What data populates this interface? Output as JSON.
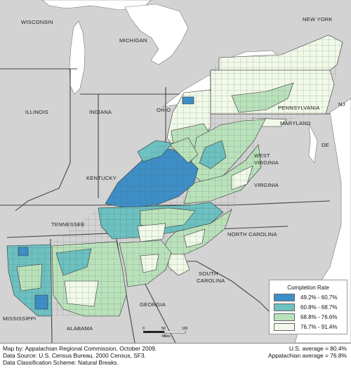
{
  "colors": {
    "bin1": "#3d8fc7",
    "bin2": "#6cc1c1",
    "bin3": "#b9e2bb",
    "bin4": "#f1f9e8",
    "land": "#d3d3d3",
    "water": "#ffffff",
    "outline": "#222222"
  },
  "states": {
    "wisconsin": "WISCONSIN",
    "michigan": "MICHIGAN",
    "new_york": "NEW YORK",
    "illinois": "ILLINOIS",
    "indiana": "INDIANA",
    "ohio": "OHIO",
    "pennsylvania": "PENNSYLVANIA",
    "nj": "NJ",
    "maryland": "MARYLAND",
    "de": "DE",
    "west_virginia_1": "WEST",
    "west_virginia_2": "VIRGINIA",
    "kentucky": "KENTUCKY",
    "virginia": "VIRGINIA",
    "tennessee": "TENNESSEE",
    "north_carolina": "NORTH CAROLINA",
    "south_carolina_1": "SOUTH",
    "south_carolina_2": "CAROLINA",
    "georgia": "GEORGIA",
    "mississippi": "MISSISSIPPI",
    "alabama": "ALABAMA"
  },
  "legend": {
    "title": "Completion Rate",
    "items": [
      {
        "label": "49.2% - 60.7%",
        "color": "#3d8fc7"
      },
      {
        "label": "60.8% - 68.7%",
        "color": "#6cc1c1"
      },
      {
        "label": "68.8% - 76.6%",
        "color": "#b9e2bb"
      },
      {
        "label": "76.7% - 91.4%",
        "color": "#f1f9e8"
      }
    ]
  },
  "scale": {
    "ticks": [
      "0",
      "50",
      "100"
    ],
    "unit": "Miles"
  },
  "footer": {
    "left_1": "Map by: Appalachian Regional Commission, October 2009.",
    "left_2": "Data Source: U.S. Census Bureau, 2000 Census, SF3.",
    "left_3": "Data Classification Scheme: Natural Breaks.",
    "right_1": "U.S. average = 80.4%",
    "right_2": "Appalachian average = 76.8%"
  }
}
